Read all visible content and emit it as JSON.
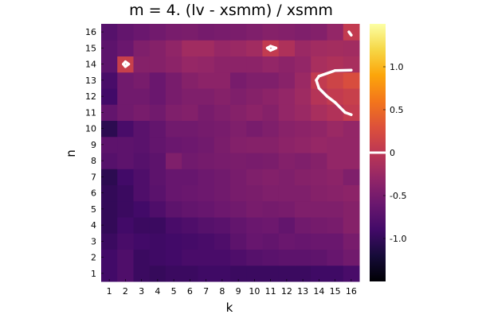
{
  "chart_data": {
    "type": "heatmap",
    "title": "m = 4. (lv - xsmm) / xsmm",
    "xlabel": "k",
    "ylabel": "n",
    "x_categories": [
      "1",
      "2",
      "3",
      "4",
      "5",
      "6",
      "7",
      "8",
      "9",
      "10",
      "11",
      "12",
      "13",
      "14",
      "15",
      "16"
    ],
    "y_categories": [
      "1",
      "2",
      "3",
      "4",
      "5",
      "6",
      "7",
      "8",
      "9",
      "10",
      "11",
      "12",
      "13",
      "14",
      "15",
      "16"
    ],
    "colorscale": "inferno",
    "clim": [
      -1.5,
      1.5
    ],
    "colorbar_ticks": [
      "-1.0",
      "-0.5",
      "0",
      "0.5",
      "1.0"
    ],
    "colorbar_tick_values": [
      -1.0,
      -0.5,
      0,
      0.5,
      1.0
    ],
    "contour_level": 0,
    "contour_color": "#ffffff",
    "z_rows_n1_to_n16": [
      [
        -0.9,
        -0.8,
        -0.95,
        -0.98,
        -0.95,
        -0.95,
        -0.92,
        -0.92,
        -0.95,
        -0.95,
        -0.95,
        -0.95,
        -0.95,
        -0.92,
        -0.92,
        -0.85
      ],
      [
        -0.9,
        -0.8,
        -0.95,
        -0.92,
        -0.9,
        -0.85,
        -0.85,
        -0.85,
        -0.8,
        -0.75,
        -0.72,
        -0.7,
        -0.7,
        -0.68,
        -0.62,
        -0.55
      ],
      [
        -0.95,
        -0.85,
        -0.9,
        -0.92,
        -0.9,
        -0.88,
        -0.85,
        -0.8,
        -0.7,
        -0.62,
        -0.65,
        -0.6,
        -0.62,
        -0.6,
        -0.6,
        -0.5
      ],
      [
        -1.0,
        -0.9,
        -0.95,
        -0.95,
        -0.85,
        -0.8,
        -0.75,
        -0.72,
        -0.65,
        -0.6,
        -0.58,
        -0.65,
        -0.55,
        -0.52,
        -0.5,
        -0.4
      ],
      [
        -1.0,
        -0.95,
        -0.9,
        -0.8,
        -0.7,
        -0.65,
        -0.62,
        -0.58,
        -0.55,
        -0.5,
        -0.52,
        -0.5,
        -0.45,
        -0.45,
        -0.45,
        -0.4
      ],
      [
        -1.0,
        -0.95,
        -0.8,
        -0.72,
        -0.62,
        -0.6,
        -0.58,
        -0.55,
        -0.5,
        -0.48,
        -0.45,
        -0.45,
        -0.45,
        -0.4,
        -0.38,
        -0.35
      ],
      [
        -1.05,
        -0.9,
        -0.8,
        -0.7,
        -0.62,
        -0.62,
        -0.58,
        -0.55,
        -0.5,
        -0.45,
        -0.42,
        -0.45,
        -0.4,
        -0.38,
        -0.35,
        -0.45
      ],
      [
        -0.75,
        -0.7,
        -0.75,
        -0.7,
        -0.45,
        -0.55,
        -0.52,
        -0.5,
        -0.48,
        -0.5,
        -0.48,
        -0.42,
        -0.45,
        -0.4,
        -0.3,
        -0.3
      ],
      [
        -0.7,
        -0.7,
        -0.72,
        -0.65,
        -0.6,
        -0.58,
        -0.55,
        -0.48,
        -0.42,
        -0.4,
        -0.4,
        -0.35,
        -0.32,
        -0.28,
        -0.3,
        -0.3
      ],
      [
        -1.05,
        -0.85,
        -0.72,
        -0.65,
        -0.55,
        -0.55,
        -0.52,
        -0.5,
        -0.45,
        -0.5,
        -0.45,
        -0.38,
        -0.35,
        -0.32,
        -0.25,
        -0.3
      ],
      [
        -0.65,
        -0.55,
        -0.5,
        -0.55,
        -0.45,
        -0.42,
        -0.5,
        -0.45,
        -0.4,
        -0.35,
        -0.4,
        -0.3,
        -0.25,
        -0.15,
        -0.08,
        0.05
      ],
      [
        -0.9,
        -0.55,
        -0.55,
        -0.6,
        -0.5,
        -0.45,
        -0.45,
        -0.4,
        -0.45,
        -0.4,
        -0.35,
        -0.3,
        -0.22,
        -0.05,
        0.05,
        0.1
      ],
      [
        -0.85,
        -0.55,
        -0.5,
        -0.6,
        -0.5,
        -0.4,
        -0.35,
        -0.35,
        -0.5,
        -0.45,
        -0.45,
        -0.38,
        -0.25,
        0.05,
        0.15,
        0.25
      ],
      [
        -0.7,
        0.1,
        -0.4,
        -0.4,
        -0.35,
        -0.28,
        -0.3,
        -0.35,
        -0.35,
        -0.35,
        -0.3,
        -0.35,
        -0.3,
        -0.15,
        -0.1,
        -0.15
      ],
      [
        -0.7,
        -0.6,
        -0.45,
        -0.4,
        -0.32,
        -0.2,
        -0.2,
        -0.28,
        -0.25,
        -0.2,
        0.05,
        -0.1,
        -0.25,
        -0.2,
        -0.18,
        -0.2
      ],
      [
        -0.75,
        -0.65,
        -0.6,
        -0.55,
        -0.5,
        -0.48,
        -0.52,
        -0.5,
        -0.48,
        -0.45,
        -0.4,
        -0.42,
        -0.45,
        -0.42,
        -0.3,
        0.05
      ]
    ]
  }
}
